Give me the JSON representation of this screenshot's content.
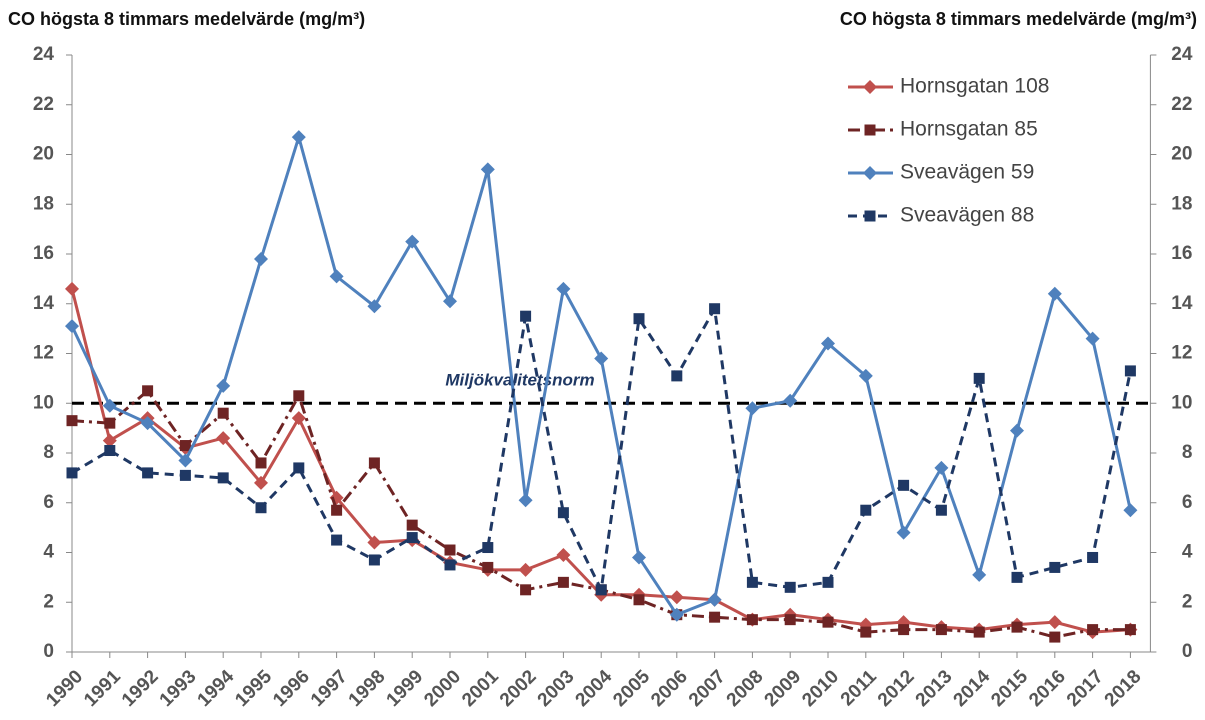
{
  "chart_data": {
    "type": "line",
    "y_label": "CO högsta 8 timmars medelvärde (mg/m³)",
    "y2_label": "CO högsta 8 timmars medelvärde (mg/m³)",
    "categories": [
      "1990",
      "1991",
      "1992",
      "1993",
      "1994",
      "1995",
      "1996",
      "1997",
      "1998",
      "1999",
      "2000",
      "2001",
      "2002",
      "2003",
      "2004",
      "2005",
      "2006",
      "2007",
      "2008",
      "2009",
      "2010",
      "2011",
      "2012",
      "2013",
      "2014",
      "2015",
      "2016",
      "2017",
      "2018"
    ],
    "ylim": [
      0,
      24
    ],
    "yticks": [
      0,
      2,
      4,
      6,
      8,
      10,
      12,
      14,
      16,
      18,
      20,
      22,
      24
    ],
    "y2lim": [
      0,
      24
    ],
    "y2ticks": [
      0,
      2,
      4,
      6,
      8,
      10,
      12,
      14,
      16,
      18,
      20,
      22,
      24
    ],
    "reference_line": {
      "label": "Miljökvalitetsnorm",
      "value": 10,
      "color": "#000000"
    },
    "legend_position": "upper right",
    "series": [
      {
        "name": "Hornsgatan 108",
        "color": "#c0504d",
        "marker": "diamond",
        "dash": "solid",
        "values": [
          14.6,
          8.5,
          9.4,
          8.2,
          8.6,
          6.8,
          9.4,
          6.2,
          4.4,
          4.5,
          3.6,
          3.3,
          3.3,
          3.9,
          2.3,
          2.3,
          2.2,
          2.1,
          1.3,
          1.5,
          1.3,
          1.1,
          1.2,
          1.0,
          0.9,
          1.1,
          1.2,
          0.8,
          0.9
        ]
      },
      {
        "name": "Hornsgatan 85",
        "color": "#6e2424",
        "marker": "square",
        "dash": "dashdot",
        "values": [
          9.3,
          9.2,
          10.5,
          8.3,
          9.6,
          7.6,
          10.3,
          5.7,
          7.6,
          5.1,
          4.1,
          3.4,
          2.5,
          2.8,
          2.5,
          2.1,
          1.5,
          1.4,
          1.3,
          1.3,
          1.2,
          0.8,
          0.9,
          0.9,
          0.8,
          1.0,
          0.6,
          0.9,
          0.9
        ]
      },
      {
        "name": "Sveavägen 59",
        "color": "#4f81bd",
        "marker": "diamond",
        "dash": "solid",
        "values": [
          13.1,
          9.9,
          9.2,
          7.7,
          10.7,
          15.8,
          20.7,
          15.1,
          13.9,
          16.5,
          14.1,
          19.4,
          6.1,
          14.6,
          11.8,
          3.8,
          1.5,
          2.1,
          9.8,
          10.1,
          12.4,
          11.1,
          4.8,
          7.4,
          3.1,
          8.9,
          14.4,
          12.6,
          5.7
        ]
      },
      {
        "name": "Sveavägen 88",
        "color": "#1f3864",
        "marker": "square",
        "dash": "dashed",
        "values": [
          7.2,
          8.1,
          7.2,
          7.1,
          7.0,
          5.8,
          7.4,
          4.5,
          3.7,
          4.6,
          3.5,
          4.2,
          13.5,
          5.6,
          2.5,
          13.4,
          11.1,
          13.8,
          2.8,
          2.6,
          2.8,
          5.7,
          6.7,
          5.7,
          11.0,
          3.0,
          3.4,
          3.8,
          11.3
        ]
      }
    ]
  }
}
